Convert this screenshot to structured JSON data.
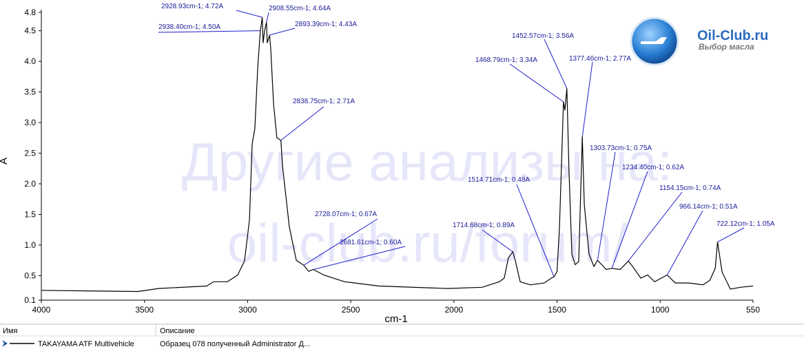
{
  "chart_data": {
    "type": "line",
    "x_label": "cm-1",
    "y_label": "A",
    "xlim": [
      4000,
      550
    ],
    "ylim": [
      0.1,
      4.8
    ],
    "xticks": [
      4000,
      3500,
      3000,
      2500,
      2000,
      1500,
      1000,
      550
    ],
    "yticks": [
      4.8,
      4.5,
      {
        "value": 4,
        "label": "4.0"
      },
      3.5,
      {
        "value": 3,
        "label": "3.0"
      },
      2.5,
      {
        "value": 2,
        "label": "2.0"
      },
      1.5,
      {
        "value": 1,
        "label": "1.0"
      },
      0.5,
      0.1
    ],
    "series": [
      {
        "name": "TAKAYAMA ATF Multivehicle",
        "color": "#000000",
        "x": [
          4000,
          3532,
          3432,
          3198,
          3165,
          3098,
          3048,
          3015,
          2991,
          2978,
          2965,
          2951,
          2938.4,
          2928.93,
          2925,
          2918,
          2908.55,
          2905,
          2893.39,
          2888,
          2874,
          2858,
          2838.75,
          2831,
          2798,
          2764,
          2728.07,
          2704,
          2681.61,
          2631,
          2530,
          2364,
          2030,
          1863,
          1780,
          1756,
          1736,
          1714.68,
          1702,
          1679,
          1629,
          1562,
          1528,
          1514.71,
          1500,
          1488,
          1468.79,
          1462,
          1452.57,
          1442,
          1428,
          1412,
          1395,
          1377.46,
          1368,
          1345,
          1321,
          1303.73,
          1261,
          1234.4,
          1194,
          1154.15,
          1127,
          1094,
          1061,
          1027,
          966.14,
          927,
          860,
          793,
          760,
          733,
          722.12,
          700,
          660,
          610,
          550
        ],
        "values": [
          0.26,
          0.24,
          0.29,
          0.33,
          0.4,
          0.4,
          0.51,
          0.74,
          1.41,
          2.65,
          2.9,
          3.9,
          4.5,
          4.72,
          4.3,
          4.5,
          4.64,
          4.3,
          4.43,
          4.2,
          3.3,
          2.75,
          2.71,
          2.3,
          1.3,
          0.75,
          0.67,
          0.57,
          0.6,
          0.51,
          0.4,
          0.33,
          0.29,
          0.31,
          0.4,
          0.46,
          0.79,
          0.89,
          0.74,
          0.4,
          0.35,
          0.38,
          0.46,
          0.48,
          0.57,
          1.3,
          3.34,
          3.2,
          3.56,
          2.2,
          0.85,
          0.68,
          0.73,
          2.77,
          1.66,
          0.85,
          0.65,
          0.75,
          0.6,
          0.62,
          0.6,
          0.74,
          0.62,
          0.46,
          0.51,
          0.4,
          0.51,
          0.38,
          0.38,
          0.35,
          0.42,
          0.62,
          1.05,
          0.56,
          0.28,
          0.31,
          0.33
        ]
      }
    ],
    "annotations": [
      {
        "text": "2928.93cm-1; 4.72A",
        "x": 2928.93,
        "y": 4.72
      },
      {
        "text": "2938.40cm-1; 4.50A",
        "x": 2938.4,
        "y": 4.5
      },
      {
        "text": "2908.55cm-1; 4.64A",
        "x": 2908.55,
        "y": 4.64
      },
      {
        "text": "2893.39cm-1; 4.43A",
        "x": 2893.39,
        "y": 4.43
      },
      {
        "text": "2838.75cm-1; 2.71A",
        "x": 2838.75,
        "y": 2.71
      },
      {
        "text": "2728.07cm-1; 0.67A",
        "x": 2728.07,
        "y": 0.67
      },
      {
        "text": "2681.61cm-1; 0.60A",
        "x": 2681.61,
        "y": 0.6
      },
      {
        "text": "1714.68cm-1; 0.89A",
        "x": 1714.68,
        "y": 0.89
      },
      {
        "text": "1514.71cm-1; 0.48A",
        "x": 1514.71,
        "y": 0.48
      },
      {
        "text": "1468.79cm-1; 3.34A",
        "x": 1468.79,
        "y": 3.34
      },
      {
        "text": "1452.57cm-1; 3.56A",
        "x": 1452.57,
        "y": 3.56
      },
      {
        "text": "1377.46cm-1; 2.77A",
        "x": 1377.46,
        "y": 2.77
      },
      {
        "text": "1303.73cm-1; 0.75A",
        "x": 1303.73,
        "y": 0.75
      },
      {
        "text": "1234.40cm-1; 0.62A",
        "x": 1234.4,
        "y": 0.62
      },
      {
        "text": "1154.15cm-1; 0.74A",
        "x": 1154.15,
        "y": 0.74
      },
      {
        "text": "966.14cm-1; 0.51A",
        "x": 966.14,
        "y": 0.51
      },
      {
        "text": "722.12cm-1; 1.05A",
        "x": 722.12,
        "y": 1.05
      }
    ]
  },
  "watermark": [
    "Другие анализы на:",
    "oil-club.ru/forum/"
  ],
  "logo": {
    "title": "Oil-Club.ru",
    "subtitle": "Выбор масла"
  },
  "table": {
    "headers": [
      "Имя",
      "Описание"
    ],
    "description": "Образец 078 полученный Administrator Д..."
  }
}
